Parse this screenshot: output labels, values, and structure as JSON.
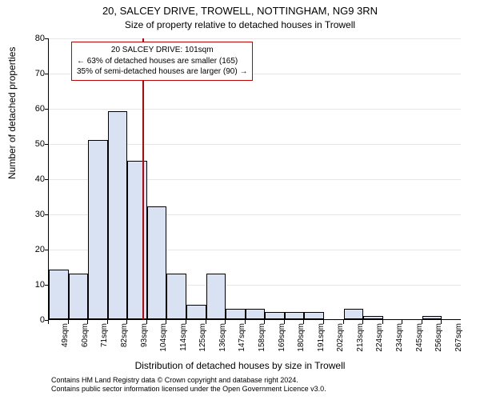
{
  "title_main": "20, SALCEY DRIVE, TROWELL, NOTTINGHAM, NG9 3RN",
  "title_sub": "Size of property relative to detached houses in Trowell",
  "ylabel": "Number of detached properties",
  "xlabel": "Distribution of detached houses by size in Trowell",
  "footer_line1": "Contains HM Land Registry data © Crown copyright and database right 2024.",
  "footer_line2": "Contains public sector information licensed under the Open Government Licence v3.0.",
  "chart": {
    "type": "histogram",
    "bar_fill": "#d8e2f2",
    "bar_stroke": "#000000",
    "grid_color": "#e6e6e6",
    "background_color": "#ffffff",
    "ylim": [
      0,
      80
    ],
    "yticks": [
      0,
      10,
      20,
      30,
      40,
      50,
      60,
      70,
      80
    ],
    "bars": [
      {
        "label": "49sqm",
        "value": 14
      },
      {
        "label": "60sqm",
        "value": 13
      },
      {
        "label": "71sqm",
        "value": 51
      },
      {
        "label": "82sqm",
        "value": 59
      },
      {
        "label": "93sqm",
        "value": 45
      },
      {
        "label": "104sqm",
        "value": 32
      },
      {
        "label": "114sqm",
        "value": 13
      },
      {
        "label": "125sqm",
        "value": 4
      },
      {
        "label": "136sqm",
        "value": 13
      },
      {
        "label": "147sqm",
        "value": 3
      },
      {
        "label": "158sqm",
        "value": 3
      },
      {
        "label": "169sqm",
        "value": 2
      },
      {
        "label": "180sqm",
        "value": 2
      },
      {
        "label": "191sqm",
        "value": 2
      },
      {
        "label": "202sqm",
        "value": 0
      },
      {
        "label": "213sqm",
        "value": 3
      },
      {
        "label": "224sqm",
        "value": 1
      },
      {
        "label": "234sqm",
        "value": 0
      },
      {
        "label": "245sqm",
        "value": 0
      },
      {
        "label": "256sqm",
        "value": 1
      },
      {
        "label": "267sqm",
        "value": 0
      }
    ],
    "reference_line": {
      "category_index_position": 4.75,
      "color": "#bb0608",
      "width": 2
    },
    "annotation": {
      "line1": "20 SALCEY DRIVE: 101sqm",
      "line2": "← 63% of detached houses are smaller (165)",
      "line3": "35% of semi-detached houses are larger (90) →",
      "border_color": "#bb0608",
      "fontsize": 10
    }
  }
}
